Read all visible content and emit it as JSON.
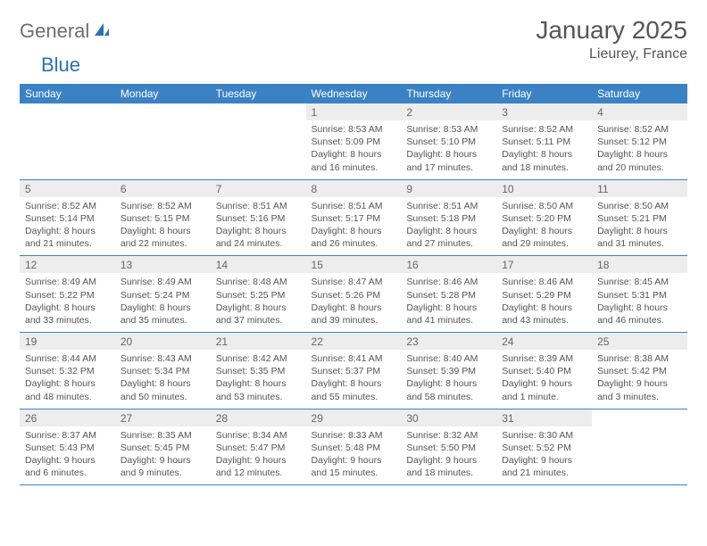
{
  "logo": {
    "part1": "General",
    "part2": "Blue"
  },
  "title": "January 2025",
  "location": "Lieurey, France",
  "colors": {
    "header_bg": "#3b82c4",
    "header_text": "#ffffff",
    "daynum_bg": "#ededed",
    "border": "#3b82c4",
    "text": "#555555",
    "logo_gray": "#6d6d6d",
    "logo_blue": "#2a71b8"
  },
  "weekdays": [
    "Sunday",
    "Monday",
    "Tuesday",
    "Wednesday",
    "Thursday",
    "Friday",
    "Saturday"
  ],
  "weeks": [
    [
      null,
      null,
      null,
      {
        "n": "1",
        "sr": "8:53 AM",
        "ss": "5:09 PM",
        "dl": "8 hours and 16 minutes."
      },
      {
        "n": "2",
        "sr": "8:53 AM",
        "ss": "5:10 PM",
        "dl": "8 hours and 17 minutes."
      },
      {
        "n": "3",
        "sr": "8:52 AM",
        "ss": "5:11 PM",
        "dl": "8 hours and 18 minutes."
      },
      {
        "n": "4",
        "sr": "8:52 AM",
        "ss": "5:12 PM",
        "dl": "8 hours and 20 minutes."
      }
    ],
    [
      {
        "n": "5",
        "sr": "8:52 AM",
        "ss": "5:14 PM",
        "dl": "8 hours and 21 minutes."
      },
      {
        "n": "6",
        "sr": "8:52 AM",
        "ss": "5:15 PM",
        "dl": "8 hours and 22 minutes."
      },
      {
        "n": "7",
        "sr": "8:51 AM",
        "ss": "5:16 PM",
        "dl": "8 hours and 24 minutes."
      },
      {
        "n": "8",
        "sr": "8:51 AM",
        "ss": "5:17 PM",
        "dl": "8 hours and 26 minutes."
      },
      {
        "n": "9",
        "sr": "8:51 AM",
        "ss": "5:18 PM",
        "dl": "8 hours and 27 minutes."
      },
      {
        "n": "10",
        "sr": "8:50 AM",
        "ss": "5:20 PM",
        "dl": "8 hours and 29 minutes."
      },
      {
        "n": "11",
        "sr": "8:50 AM",
        "ss": "5:21 PM",
        "dl": "8 hours and 31 minutes."
      }
    ],
    [
      {
        "n": "12",
        "sr": "8:49 AM",
        "ss": "5:22 PM",
        "dl": "8 hours and 33 minutes."
      },
      {
        "n": "13",
        "sr": "8:49 AM",
        "ss": "5:24 PM",
        "dl": "8 hours and 35 minutes."
      },
      {
        "n": "14",
        "sr": "8:48 AM",
        "ss": "5:25 PM",
        "dl": "8 hours and 37 minutes."
      },
      {
        "n": "15",
        "sr": "8:47 AM",
        "ss": "5:26 PM",
        "dl": "8 hours and 39 minutes."
      },
      {
        "n": "16",
        "sr": "8:46 AM",
        "ss": "5:28 PM",
        "dl": "8 hours and 41 minutes."
      },
      {
        "n": "17",
        "sr": "8:46 AM",
        "ss": "5:29 PM",
        "dl": "8 hours and 43 minutes."
      },
      {
        "n": "18",
        "sr": "8:45 AM",
        "ss": "5:31 PM",
        "dl": "8 hours and 46 minutes."
      }
    ],
    [
      {
        "n": "19",
        "sr": "8:44 AM",
        "ss": "5:32 PM",
        "dl": "8 hours and 48 minutes."
      },
      {
        "n": "20",
        "sr": "8:43 AM",
        "ss": "5:34 PM",
        "dl": "8 hours and 50 minutes."
      },
      {
        "n": "21",
        "sr": "8:42 AM",
        "ss": "5:35 PM",
        "dl": "8 hours and 53 minutes."
      },
      {
        "n": "22",
        "sr": "8:41 AM",
        "ss": "5:37 PM",
        "dl": "8 hours and 55 minutes."
      },
      {
        "n": "23",
        "sr": "8:40 AM",
        "ss": "5:39 PM",
        "dl": "8 hours and 58 minutes."
      },
      {
        "n": "24",
        "sr": "8:39 AM",
        "ss": "5:40 PM",
        "dl": "9 hours and 1 minute."
      },
      {
        "n": "25",
        "sr": "8:38 AM",
        "ss": "5:42 PM",
        "dl": "9 hours and 3 minutes."
      }
    ],
    [
      {
        "n": "26",
        "sr": "8:37 AM",
        "ss": "5:43 PM",
        "dl": "9 hours and 6 minutes."
      },
      {
        "n": "27",
        "sr": "8:35 AM",
        "ss": "5:45 PM",
        "dl": "9 hours and 9 minutes."
      },
      {
        "n": "28",
        "sr": "8:34 AM",
        "ss": "5:47 PM",
        "dl": "9 hours and 12 minutes."
      },
      {
        "n": "29",
        "sr": "8:33 AM",
        "ss": "5:48 PM",
        "dl": "9 hours and 15 minutes."
      },
      {
        "n": "30",
        "sr": "8:32 AM",
        "ss": "5:50 PM",
        "dl": "9 hours and 18 minutes."
      },
      {
        "n": "31",
        "sr": "8:30 AM",
        "ss": "5:52 PM",
        "dl": "9 hours and 21 minutes."
      },
      null
    ]
  ],
  "labels": {
    "sunrise": "Sunrise:",
    "sunset": "Sunset:",
    "daylight": "Daylight:"
  }
}
